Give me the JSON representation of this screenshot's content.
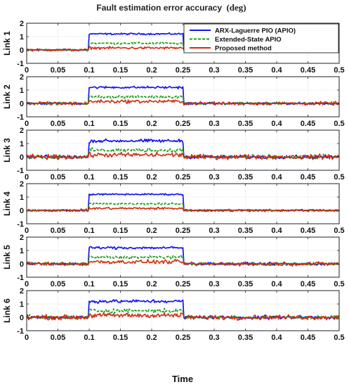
{
  "chart_data": {
    "type": "line",
    "title": "Fault estimation error accuracy",
    "title_unit": "(deg)",
    "xlabel": "Time",
    "xlim": [
      0,
      0.5
    ],
    "xticks": [
      "0",
      "0.05",
      "0.1",
      "0.15",
      "0.2",
      "0.25",
      "0.3",
      "0.35",
      "0.4",
      "0.45",
      "0.5"
    ],
    "ylim": [
      -1,
      2
    ],
    "yticks": [
      "-1",
      "0",
      "1",
      "2"
    ],
    "grid": true,
    "legend_position": "top-right",
    "colors": {
      "ARX-Laguerre PIO (APIO)": "#1515f0",
      "Extended-State APIO": "#1aa01a",
      "Proposed method": "#d42a10"
    },
    "series": [
      {
        "name": "ARX-Laguerre PIO (APIO)",
        "style": "solid",
        "fault_window": [
          0.1,
          0.25
        ],
        "fault_level": 1.2,
        "baseline": 0.0
      },
      {
        "name": "Extended-State APIO",
        "style": "dashed",
        "fault_window": [
          0.1,
          0.25
        ],
        "fault_level": 0.5,
        "baseline": 0.0
      },
      {
        "name": "Proposed method",
        "style": "solid",
        "fault_window": [
          0.1,
          0.25
        ],
        "fault_level": 0.15,
        "baseline": 0.0
      }
    ],
    "panels": [
      {
        "ylabel": "Link 1",
        "noise": 0.1
      },
      {
        "ylabel": "Link 2",
        "noise": 0.14
      },
      {
        "ylabel": "Link 3",
        "noise": 0.2
      },
      {
        "ylabel": "Link 4",
        "noise": 0.1
      },
      {
        "ylabel": "Link 5",
        "noise": 0.16
      },
      {
        "ylabel": "Link 6",
        "noise": 0.2
      }
    ]
  }
}
